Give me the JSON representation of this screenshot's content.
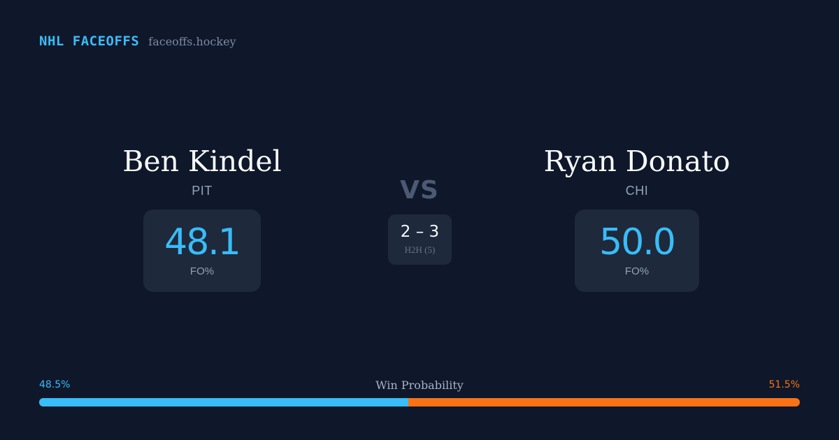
{
  "brand": {
    "name": "NHL FACEOFFS",
    "domain": "faceoffs.hockey"
  },
  "players": [
    {
      "name": "Ben Kindel",
      "team": "PIT",
      "fo_pct": "48.1",
      "fo_label": "FO%"
    },
    {
      "name": "Ryan Donato",
      "team": "CHI",
      "fo_pct": "50.0",
      "fo_label": "FO%"
    }
  ],
  "matchup": {
    "vs_label": "VS",
    "h2h_score": "2 – 3",
    "h2h_label": "H2H (5)"
  },
  "win_probability": {
    "title": "Win Probability",
    "left_label": "48.5%",
    "right_label": "51.5%",
    "left_value": 48.5,
    "right_value": 51.5
  },
  "colors": {
    "left": "#38bdf8",
    "right": "#f97316",
    "background": "#0f172a",
    "card": "#1e293b"
  }
}
